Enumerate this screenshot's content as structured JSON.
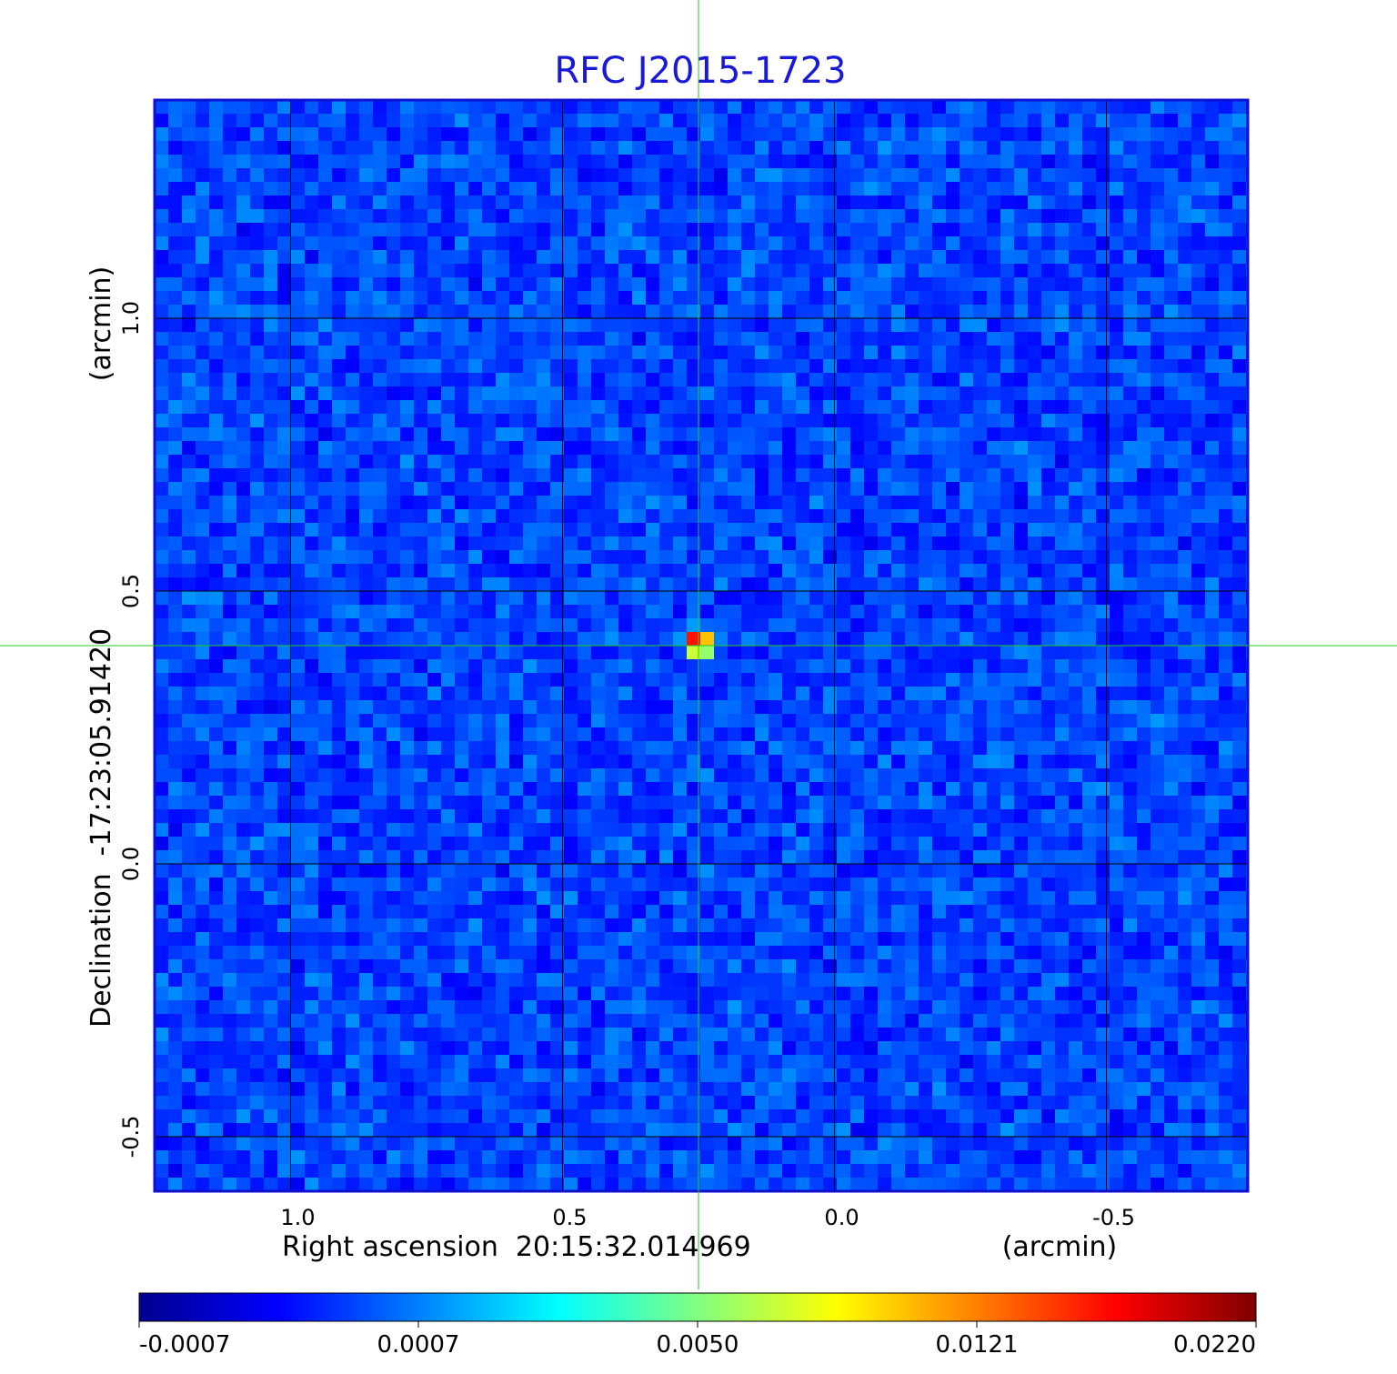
{
  "chart_data": {
    "type": "heatmap",
    "title": "RFC J2015-1723",
    "xlabel": "Right ascension  20:15:32.014969",
    "xunit": "(arcmin)",
    "ylabel": "Declination  -17:23:05.91420",
    "yunit": "(arcmin)",
    "x_ticks": [
      {
        "value": 1.0,
        "label": "1.0"
      },
      {
        "value": 0.5,
        "label": "0.5"
      },
      {
        "value": 0.0,
        "label": "0.0"
      },
      {
        "value": -0.5,
        "label": "-0.5"
      }
    ],
    "y_ticks": [
      {
        "value": 1.0,
        "label": "1.0"
      },
      {
        "value": 0.5,
        "label": "0.5"
      },
      {
        "value": 0.0,
        "label": "0.0"
      },
      {
        "value": -0.5,
        "label": "-0.5"
      }
    ],
    "xlim": [
      1.25,
      -0.76
    ],
    "ylim": [
      -0.6,
      1.4
    ],
    "grid": true,
    "crosshair": {
      "x": 0.25,
      "y": 0.4
    },
    "peak": {
      "x": 0.25,
      "y": 0.405,
      "value": 0.022
    },
    "colormap": "jet",
    "colorbar_ticks": [
      "-0.0007",
      "0.0007",
      "0.0050",
      "0.0121",
      "0.0220"
    ],
    "colorbar_range": [
      -0.0007,
      0.022
    ],
    "colors": {
      "title": "#1a1ad6",
      "frame": "#1010d0",
      "crosshair": "#22cc22",
      "grid": "#000000"
    }
  }
}
